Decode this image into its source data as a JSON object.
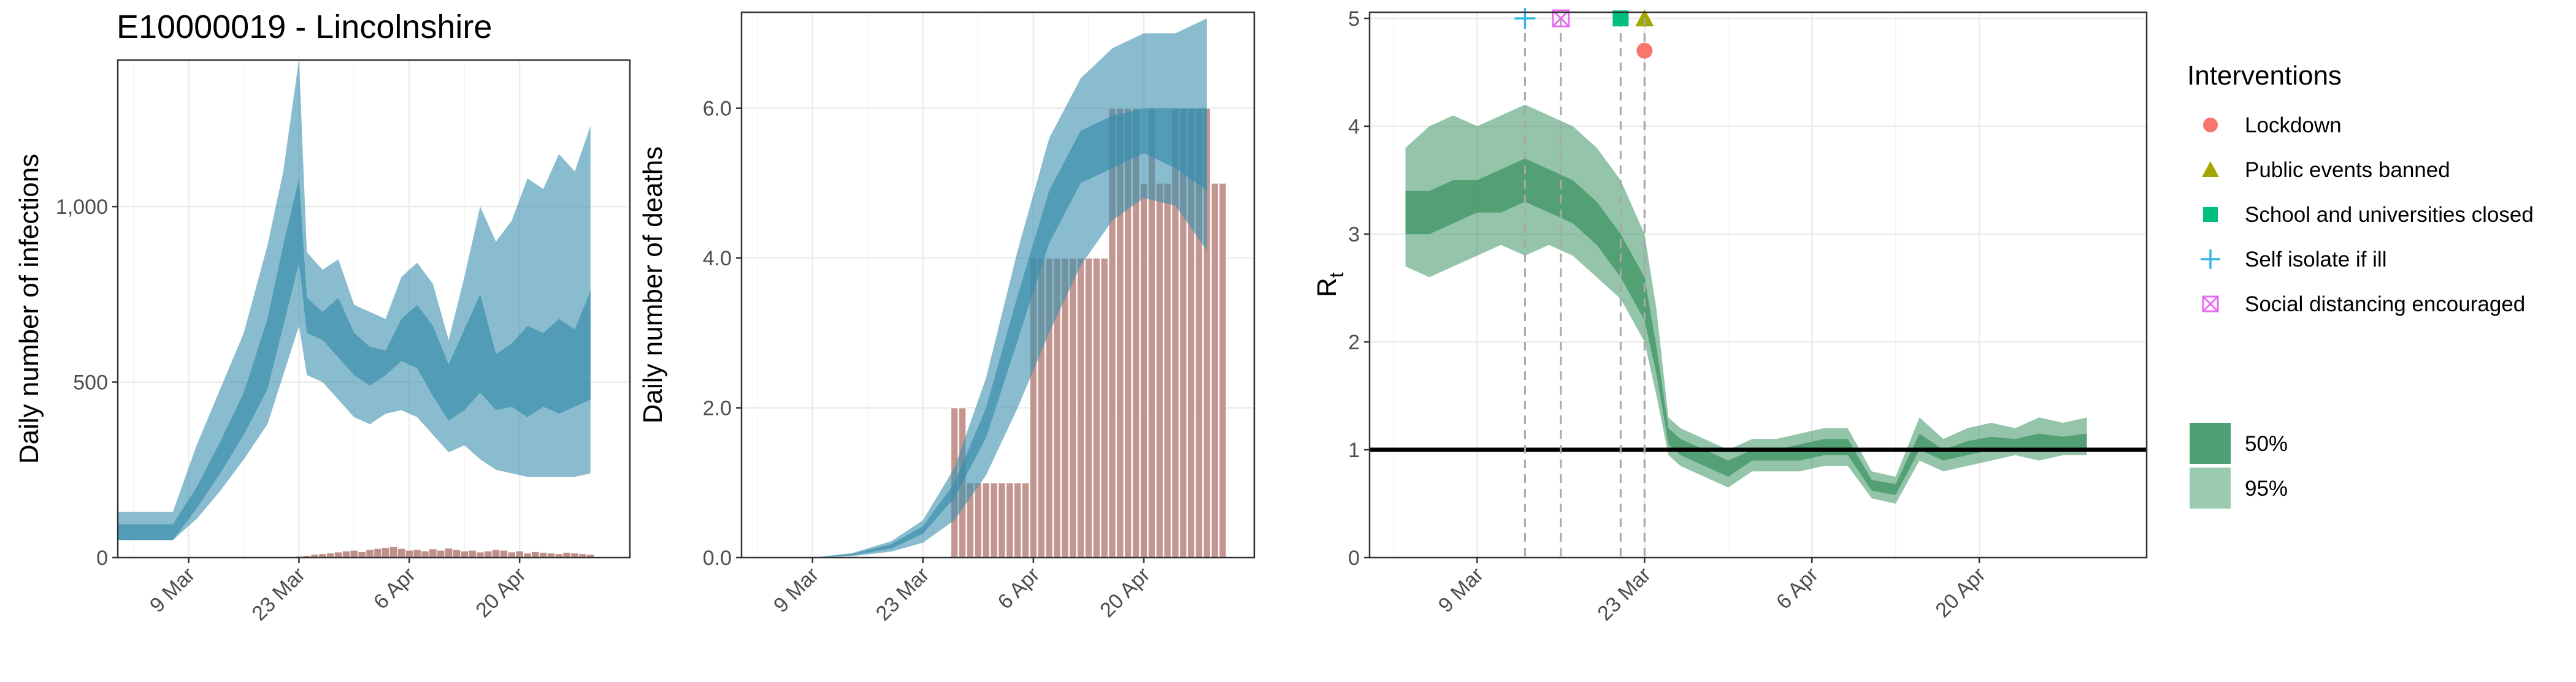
{
  "title": "E10000019 - Lincolnshire",
  "colors": {
    "blue": "#3a8fae",
    "bar": "#b8847c",
    "green": "#3d9463",
    "grid": "#ebebeb"
  },
  "chart_data": [
    {
      "type": "area",
      "panel": "infections",
      "ylabel": "Daily number of infections",
      "xlabel": "",
      "x_ticks": [
        "9 Mar",
        "23 Mar",
        "6 Apr",
        "20 Apr"
      ],
      "y_ticks": [
        "0",
        "500",
        "1,000"
      ],
      "ylim": [
        0,
        1400
      ],
      "x_start": "2020-02-29",
      "dates": [
        "2020-02-29",
        "2020-03-07",
        "2020-03-10",
        "2020-03-13",
        "2020-03-16",
        "2020-03-19",
        "2020-03-21",
        "2020-03-23",
        "2020-03-24",
        "2020-03-26",
        "2020-03-28",
        "2020-03-30",
        "2020-04-01",
        "2020-04-03",
        "2020-04-05",
        "2020-04-07",
        "2020-04-09",
        "2020-04-11",
        "2020-04-13",
        "2020-04-15",
        "2020-04-17",
        "2020-04-19",
        "2020-04-21",
        "2020-04-23",
        "2020-04-25",
        "2020-04-27",
        "2020-04-29"
      ],
      "series": [
        {
          "name": "95%",
          "lower": [
            50,
            50,
            110,
            190,
            280,
            380,
            520,
            660,
            520,
            500,
            450,
            400,
            380,
            410,
            420,
            400,
            350,
            300,
            320,
            280,
            250,
            240,
            230,
            230,
            230,
            230,
            240
          ],
          "upper": [
            130,
            130,
            320,
            480,
            640,
            890,
            1100,
            1420,
            870,
            820,
            850,
            720,
            700,
            680,
            800,
            840,
            780,
            620,
            800,
            1000,
            900,
            960,
            1080,
            1050,
            1150,
            1100,
            1230
          ]
        },
        {
          "name": "50%",
          "lower": [
            50,
            50,
            140,
            240,
            350,
            480,
            660,
            840,
            640,
            620,
            570,
            520,
            490,
            520,
            560,
            540,
            460,
            390,
            420,
            470,
            420,
            430,
            400,
            430,
            410,
            430,
            450
          ],
          "upper": [
            95,
            95,
            200,
            330,
            470,
            680,
            890,
            1080,
            740,
            700,
            740,
            640,
            600,
            590,
            680,
            720,
            660,
            550,
            650,
            750,
            580,
            610,
            660,
            640,
            680,
            650,
            760
          ]
        }
      ],
      "cases": {
        "start": "2020-03-23",
        "end": "2020-04-29",
        "values": [
          3,
          5,
          8,
          10,
          12,
          15,
          18,
          20,
          16,
          22,
          25,
          28,
          30,
          25,
          20,
          22,
          18,
          24,
          20,
          26,
          22,
          18,
          20,
          15,
          18,
          22,
          20,
          15,
          18,
          12,
          16,
          14,
          12,
          10,
          14,
          12,
          10,
          8
        ]
      }
    },
    {
      "type": "bar",
      "panel": "deaths",
      "ylabel": "Daily number of deaths",
      "xlabel": "",
      "x_ticks": [
        "9 Mar",
        "23 Mar",
        "6 Apr",
        "20 Apr"
      ],
      "y_ticks": [
        "0.0",
        "2.0",
        "4.0",
        "6.0"
      ],
      "ylim": [
        0,
        7.2
      ],
      "x_start": "2020-02-29",
      "dates": [
        "2020-03-09",
        "2020-03-14",
        "2020-03-19",
        "2020-03-23",
        "2020-03-27",
        "2020-03-31",
        "2020-04-04",
        "2020-04-08",
        "2020-04-12",
        "2020-04-16",
        "2020-04-20",
        "2020-04-24",
        "2020-04-28"
      ],
      "series": [
        {
          "name": "95%",
          "lower": [
            0,
            0.02,
            0.08,
            0.2,
            0.5,
            1.1,
            2.0,
            3.0,
            3.9,
            4.5,
            4.8,
            4.7,
            4.1
          ],
          "upper": [
            0,
            0.06,
            0.22,
            0.5,
            1.2,
            2.4,
            4.1,
            5.6,
            6.4,
            6.8,
            7.0,
            7.0,
            7.2
          ]
        },
        {
          "name": "50%",
          "lower": [
            0,
            0.03,
            0.12,
            0.32,
            0.8,
            1.6,
            2.9,
            4.2,
            5.0,
            5.2,
            5.4,
            5.2,
            4.9
          ],
          "upper": [
            0,
            0.05,
            0.18,
            0.42,
            1.0,
            2.0,
            3.5,
            4.9,
            5.7,
            5.9,
            6.0,
            6.0,
            6.0
          ]
        }
      ],
      "deaths": {
        "start": "2020-03-27",
        "end": "2020-04-30",
        "values": [
          2,
          2,
          1,
          1,
          1,
          1,
          1,
          1,
          1,
          1,
          4,
          4,
          4,
          4,
          4,
          4,
          4,
          4,
          4,
          4,
          6,
          6,
          6,
          6,
          5,
          6,
          5,
          5,
          6,
          6,
          6,
          6,
          6,
          5,
          5
        ]
      }
    },
    {
      "type": "area",
      "panel": "rt",
      "ylabel": "R",
      "ylabel_sub": "t",
      "xlabel": "",
      "x_ticks": [
        "9 Mar",
        "23 Mar",
        "6 Apr",
        "20 Apr"
      ],
      "y_ticks": [
        "0",
        "1",
        "2",
        "3",
        "4",
        "5"
      ],
      "ylim": [
        0,
        5
      ],
      "x_start": "2020-02-29",
      "reference_line": 1,
      "dates": [
        "2020-03-03",
        "2020-03-05",
        "2020-03-07",
        "2020-03-09",
        "2020-03-11",
        "2020-03-13",
        "2020-03-15",
        "2020-03-17",
        "2020-03-19",
        "2020-03-21",
        "2020-03-23",
        "2020-03-24",
        "2020-03-25",
        "2020-03-26",
        "2020-03-28",
        "2020-03-30",
        "2020-04-01",
        "2020-04-03",
        "2020-04-05",
        "2020-04-07",
        "2020-04-09",
        "2020-04-11",
        "2020-04-13",
        "2020-04-15",
        "2020-04-17",
        "2020-04-19",
        "2020-04-21",
        "2020-04-23",
        "2020-04-25",
        "2020-04-27",
        "2020-04-29"
      ],
      "series": [
        {
          "name": "95%",
          "lower": [
            2.7,
            2.6,
            2.7,
            2.8,
            2.9,
            2.8,
            2.9,
            2.8,
            2.6,
            2.4,
            2.0,
            1.5,
            0.95,
            0.85,
            0.75,
            0.65,
            0.8,
            0.8,
            0.8,
            0.85,
            0.85,
            0.55,
            0.5,
            0.9,
            0.8,
            0.85,
            0.9,
            0.95,
            0.9,
            0.95,
            0.95
          ],
          "upper": [
            3.8,
            4.0,
            4.1,
            4.0,
            4.1,
            4.2,
            4.1,
            4.0,
            3.8,
            3.5,
            3.0,
            2.3,
            1.3,
            1.2,
            1.1,
            1.0,
            1.1,
            1.1,
            1.15,
            1.2,
            1.2,
            0.8,
            0.75,
            1.3,
            1.1,
            1.2,
            1.25,
            1.2,
            1.3,
            1.25,
            1.3
          ]
        },
        {
          "name": "50%",
          "lower": [
            3.0,
            3.0,
            3.1,
            3.2,
            3.2,
            3.3,
            3.2,
            3.1,
            2.9,
            2.6,
            2.2,
            1.7,
            1.05,
            0.95,
            0.85,
            0.75,
            0.9,
            0.9,
            0.9,
            0.95,
            0.95,
            0.62,
            0.58,
            1.0,
            0.9,
            0.95,
            1.0,
            1.0,
            1.0,
            1.02,
            1.0
          ],
          "upper": [
            3.4,
            3.4,
            3.5,
            3.5,
            3.6,
            3.7,
            3.6,
            3.5,
            3.3,
            3.0,
            2.6,
            1.95,
            1.2,
            1.1,
            1.0,
            0.9,
            1.0,
            1.0,
            1.05,
            1.1,
            1.1,
            0.72,
            0.68,
            1.15,
            1.0,
            1.08,
            1.12,
            1.1,
            1.15,
            1.12,
            1.15
          ]
        }
      ],
      "interventions": [
        {
          "name": "Self isolate if ill",
          "date": "2020-03-13",
          "marker": "plus",
          "color": "#35b7e6"
        },
        {
          "name": "Social distancing encouraged",
          "date": "2020-03-16",
          "marker": "boxcross",
          "color": "#e76bf3"
        },
        {
          "name": "School and universities closed",
          "date": "2020-03-21",
          "marker": "square",
          "color": "#00bf7d"
        },
        {
          "name": "Public events banned",
          "date": "2020-03-23",
          "marker": "triangle",
          "color": "#a3a500"
        },
        {
          "name": "Lockdown",
          "date": "2020-03-23",
          "marker": "circle",
          "color": "#f8766d",
          "yoff": -0.3
        }
      ]
    }
  ],
  "legend": {
    "title": "Interventions",
    "items": [
      {
        "label": "Lockdown",
        "marker": "circle",
        "color": "#f8766d"
      },
      {
        "label": "Public events banned",
        "marker": "triangle",
        "color": "#a3a500"
      },
      {
        "label": "School and universities closed",
        "marker": "square",
        "color": "#00bf7d"
      },
      {
        "label": "Self isolate if ill",
        "marker": "plus",
        "color": "#35b7e6"
      },
      {
        "label": "Social distancing encouraged",
        "marker": "boxcross",
        "color": "#e76bf3"
      }
    ],
    "bands": [
      {
        "label": "50%",
        "color": "#4f9f72"
      },
      {
        "label": "95%",
        "color": "#9cccb0"
      }
    ]
  }
}
